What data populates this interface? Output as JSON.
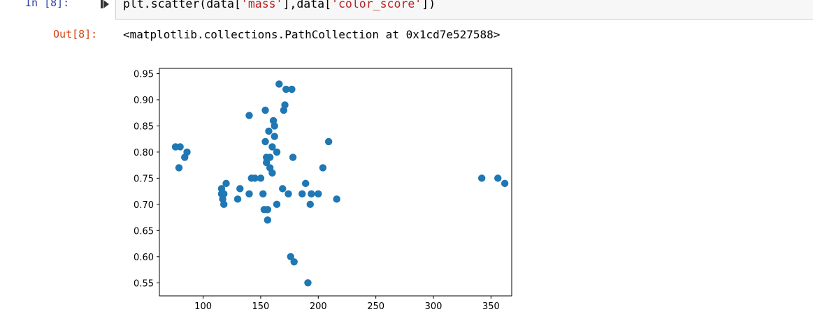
{
  "input_cell": {
    "prompt": "In [8]:",
    "code_prefix": "plt.scatter(data[",
    "code_arg1": "'mass'",
    "code_mid": "],data[",
    "code_arg2": "'color_score'",
    "code_suffix": "])",
    "run_icon": "run-cell-icon"
  },
  "output_cell": {
    "prompt": "Out[8]:",
    "text": "<matplotlib.collections.PathCollection at 0x1cd7e527588>"
  },
  "chart_data": {
    "type": "scatter",
    "xlabel": "",
    "ylabel": "",
    "xlim": [
      62,
      368
    ],
    "ylim": [
      0.525,
      0.96
    ],
    "xticks": [
      100,
      150,
      200,
      250,
      300,
      350
    ],
    "xtick_labels": [
      "100",
      "150",
      "200",
      "250",
      "300",
      "350"
    ],
    "yticks": [
      0.55,
      0.6,
      0.65,
      0.7,
      0.75,
      0.8,
      0.85,
      0.9,
      0.95
    ],
    "ytick_labels": [
      "0.55",
      "0.60",
      "0.65",
      "0.70",
      "0.75",
      "0.80",
      "0.85",
      "0.90",
      "0.95"
    ],
    "grid": false,
    "marker_color": "#1f77b4",
    "points": [
      [
        76,
        0.81
      ],
      [
        80,
        0.81
      ],
      [
        79,
        0.77
      ],
      [
        84,
        0.79
      ],
      [
        86,
        0.8
      ],
      [
        116,
        0.73
      ],
      [
        116,
        0.72
      ],
      [
        117,
        0.71
      ],
      [
        118,
        0.7
      ],
      [
        118,
        0.72
      ],
      [
        120,
        0.74
      ],
      [
        130,
        0.71
      ],
      [
        132,
        0.73
      ],
      [
        140,
        0.72
      ],
      [
        140,
        0.87
      ],
      [
        142,
        0.75
      ],
      [
        145,
        0.75
      ],
      [
        150,
        0.75
      ],
      [
        152,
        0.72
      ],
      [
        153,
        0.69
      ],
      [
        154,
        0.88
      ],
      [
        154,
        0.82
      ],
      [
        155,
        0.79
      ],
      [
        155,
        0.78
      ],
      [
        156,
        0.69
      ],
      [
        156,
        0.67
      ],
      [
        157,
        0.84
      ],
      [
        158,
        0.79
      ],
      [
        158,
        0.77
      ],
      [
        160,
        0.76
      ],
      [
        160,
        0.81
      ],
      [
        161,
        0.86
      ],
      [
        162,
        0.85
      ],
      [
        162,
        0.83
      ],
      [
        164,
        0.8
      ],
      [
        164,
        0.7
      ],
      [
        166,
        0.93
      ],
      [
        169,
        0.73
      ],
      [
        170,
        0.88
      ],
      [
        171,
        0.89
      ],
      [
        172,
        0.92
      ],
      [
        174,
        0.72
      ],
      [
        176,
        0.6
      ],
      [
        177,
        0.92
      ],
      [
        178,
        0.79
      ],
      [
        179,
        0.59
      ],
      [
        186,
        0.72
      ],
      [
        189,
        0.74
      ],
      [
        191,
        0.55
      ],
      [
        193,
        0.7
      ],
      [
        194,
        0.72
      ],
      [
        200,
        0.72
      ],
      [
        204,
        0.77
      ],
      [
        209,
        0.82
      ],
      [
        216,
        0.71
      ],
      [
        342,
        0.75
      ],
      [
        356,
        0.75
      ],
      [
        362,
        0.74
      ]
    ]
  }
}
